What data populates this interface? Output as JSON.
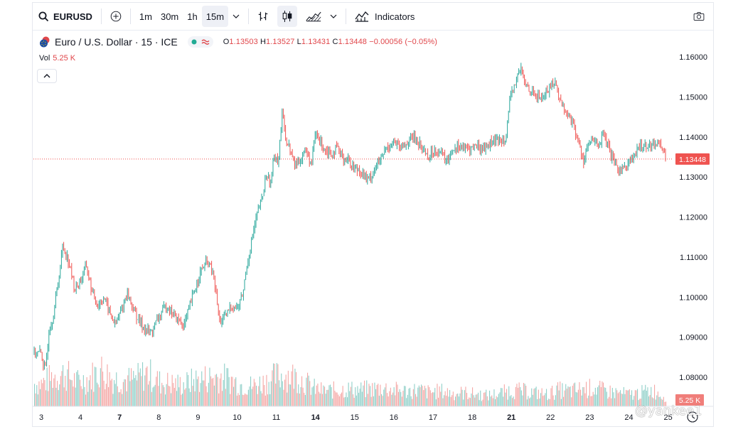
{
  "toolbar": {
    "symbol": "EURUSD",
    "intervals": [
      "1m",
      "30m",
      "1h",
      "15m"
    ],
    "active_interval": "15m",
    "indicators_label": "Indicators",
    "icons": [
      "search-icon",
      "add-symbol-icon",
      "chevron-down-icon",
      "bar-style-icon",
      "candle-style-icon",
      "area-style-icon",
      "chevron-down-icon",
      "indicators-icon",
      "camera-icon"
    ]
  },
  "legend": {
    "title": "Euro / U.S. Dollar · 15 · ICE",
    "open_label": "O",
    "open": "1.13503",
    "high_label": "H",
    "high": "1.13527",
    "low_label": "L",
    "low": "1.13431",
    "close_label": "C",
    "close": "1.13448",
    "change": "−0.00056 (−0.05%)"
  },
  "volume": {
    "label": "Vol",
    "value": "5.25 K"
  },
  "watermark": "@yankee1",
  "colors": {
    "up": "#26a69a",
    "down": "#ef5350",
    "up_vol": "#8fcfc8",
    "down_vol": "#f4a7a5",
    "last": "#ef5350"
  },
  "chart_data": {
    "type": "candlestick",
    "y_axis": {
      "min": 1.07,
      "max": 1.165,
      "ticks": [
        "1.16000",
        "1.15000",
        "1.14000",
        "1.13000",
        "1.12000",
        "1.11000",
        "1.10000",
        "1.09000",
        "1.08000"
      ]
    },
    "x_ticks": [
      "3",
      "4",
      "7",
      "8",
      "9",
      "10",
      "11",
      "14",
      "15",
      "16",
      "17",
      "18",
      "21",
      "22",
      "23",
      "24",
      "25"
    ],
    "x_ticks_bold": [
      "7",
      "14",
      "21"
    ],
    "last_price": "1.13448",
    "last_volume": "5.25 K",
    "price_path": [
      [
        0,
        1.086
      ],
      [
        0.1,
        1.081
      ],
      [
        0.2,
        1.092
      ],
      [
        0.3,
        1.095
      ],
      [
        0.45,
        1.105
      ],
      [
        0.55,
        1.113
      ],
      [
        0.7,
        1.109
      ],
      [
        0.85,
        1.102
      ],
      [
        1.0,
        1.104
      ],
      [
        1.15,
        1.108
      ],
      [
        1.3,
        1.101
      ],
      [
        1.45,
        1.098
      ],
      [
        1.6,
        1.1
      ],
      [
        1.75,
        1.096
      ],
      [
        1.9,
        1.093
      ],
      [
        2.05,
        1.097
      ],
      [
        2.2,
        1.101
      ],
      [
        2.35,
        1.097
      ],
      [
        2.5,
        1.094
      ],
      [
        2.65,
        1.092
      ],
      [
        2.8,
        1.091
      ],
      [
        3.0,
        1.095
      ],
      [
        3.2,
        1.098
      ],
      [
        3.35,
        1.096
      ],
      [
        3.5,
        1.094
      ],
      [
        3.65,
        1.093
      ],
      [
        3.8,
        1.098
      ],
      [
        3.95,
        1.103
      ],
      [
        4.1,
        1.107
      ],
      [
        4.25,
        1.109
      ],
      [
        4.4,
        1.105
      ],
      [
        4.55,
        1.094
      ],
      [
        4.7,
        1.095
      ],
      [
        4.85,
        1.098
      ],
      [
        5.0,
        1.097
      ],
      [
        5.15,
        1.101
      ],
      [
        5.25,
        1.108
      ],
      [
        5.35,
        1.113
      ],
      [
        5.45,
        1.118
      ],
      [
        5.55,
        1.122
      ],
      [
        5.65,
        1.125
      ],
      [
        5.75,
        1.131
      ],
      [
        5.85,
        1.128
      ],
      [
        5.95,
        1.136
      ],
      [
        6.05,
        1.134
      ],
      [
        6.15,
        1.146
      ],
      [
        6.25,
        1.139
      ],
      [
        6.35,
        1.137
      ],
      [
        6.45,
        1.133
      ],
      [
        6.6,
        1.134
      ],
      [
        6.75,
        1.137
      ],
      [
        6.9,
        1.133
      ],
      [
        7.0,
        1.141
      ],
      [
        7.1,
        1.139
      ],
      [
        7.25,
        1.137
      ],
      [
        7.4,
        1.136
      ],
      [
        7.55,
        1.137
      ],
      [
        7.7,
        1.135
      ],
      [
        7.85,
        1.134
      ],
      [
        8.0,
        1.132
      ],
      [
        8.1,
        1.132
      ],
      [
        8.2,
        1.131
      ],
      [
        8.35,
        1.129
      ],
      [
        8.5,
        1.132
      ],
      [
        8.65,
        1.134
      ],
      [
        8.8,
        1.137
      ],
      [
        9.0,
        1.139
      ],
      [
        9.15,
        1.137
      ],
      [
        9.3,
        1.138
      ],
      [
        9.45,
        1.14
      ],
      [
        9.6,
        1.139
      ],
      [
        9.75,
        1.137
      ],
      [
        9.9,
        1.135
      ],
      [
        10.05,
        1.137
      ],
      [
        10.2,
        1.136
      ],
      [
        10.35,
        1.134
      ],
      [
        10.5,
        1.137
      ],
      [
        10.65,
        1.138
      ],
      [
        10.8,
        1.137
      ],
      [
        10.95,
        1.137
      ],
      [
        11.1,
        1.138
      ],
      [
        11.25,
        1.137
      ],
      [
        11.4,
        1.138
      ],
      [
        11.55,
        1.139
      ],
      [
        11.7,
        1.139
      ],
      [
        11.85,
        1.14
      ],
      [
        11.95,
        1.148
      ],
      [
        12.05,
        1.152
      ],
      [
        12.15,
        1.155
      ],
      [
        12.25,
        1.157
      ],
      [
        12.35,
        1.153
      ],
      [
        12.5,
        1.152
      ],
      [
        12.65,
        1.15
      ],
      [
        12.8,
        1.15
      ],
      [
        12.95,
        1.152
      ],
      [
        13.1,
        1.154
      ],
      [
        13.25,
        1.149
      ],
      [
        13.4,
        1.146
      ],
      [
        13.55,
        1.144
      ],
      [
        13.7,
        1.139
      ],
      [
        13.85,
        1.134
      ],
      [
        13.95,
        1.138
      ],
      [
        14.1,
        1.139
      ],
      [
        14.25,
        1.138
      ],
      [
        14.35,
        1.141
      ],
      [
        14.45,
        1.138
      ],
      [
        14.55,
        1.135
      ],
      [
        14.7,
        1.132
      ],
      [
        14.85,
        1.132
      ],
      [
        15.0,
        1.134
      ],
      [
        15.15,
        1.135
      ],
      [
        15.3,
        1.138
      ],
      [
        15.45,
        1.138
      ],
      [
        15.6,
        1.138
      ],
      [
        15.75,
        1.139
      ],
      [
        15.85,
        1.137
      ],
      [
        15.95,
        1.1345
      ]
    ],
    "volume_profile": [
      [
        0,
        0.42
      ],
      [
        0.3,
        0.55
      ],
      [
        0.6,
        0.6
      ],
      [
        0.9,
        0.45
      ],
      [
        1.2,
        0.5
      ],
      [
        1.5,
        0.68
      ],
      [
        1.8,
        0.52
      ],
      [
        2.1,
        0.48
      ],
      [
        2.4,
        0.5
      ],
      [
        2.7,
        0.62
      ],
      [
        3.0,
        0.45
      ],
      [
        3.3,
        0.42
      ],
      [
        3.6,
        0.4
      ],
      [
        3.9,
        0.48
      ],
      [
        4.2,
        0.52
      ],
      [
        4.5,
        0.55
      ],
      [
        4.8,
        0.5
      ],
      [
        5.1,
        0.4
      ],
      [
        5.4,
        0.38
      ],
      [
        5.7,
        0.45
      ],
      [
        6.0,
        0.55
      ],
      [
        6.3,
        0.58
      ],
      [
        6.6,
        0.52
      ],
      [
        6.9,
        0.35
      ],
      [
        7.2,
        0.28
      ],
      [
        7.5,
        0.3
      ],
      [
        7.8,
        0.32
      ],
      [
        8.1,
        0.3
      ],
      [
        8.4,
        0.32
      ],
      [
        8.7,
        0.34
      ],
      [
        9.0,
        0.3
      ],
      [
        9.3,
        0.28
      ],
      [
        9.6,
        0.3
      ],
      [
        9.9,
        0.26
      ],
      [
        10.2,
        0.28
      ],
      [
        10.5,
        0.24
      ],
      [
        10.8,
        0.25
      ],
      [
        11.1,
        0.22
      ],
      [
        11.4,
        0.2
      ],
      [
        11.7,
        0.24
      ],
      [
        12.0,
        0.3
      ],
      [
        12.3,
        0.28
      ],
      [
        12.6,
        0.25
      ],
      [
        12.9,
        0.22
      ],
      [
        13.2,
        0.3
      ],
      [
        13.5,
        0.28
      ],
      [
        13.8,
        0.32
      ],
      [
        14.1,
        0.34
      ],
      [
        14.4,
        0.28
      ],
      [
        14.7,
        0.25
      ],
      [
        15.0,
        0.22
      ],
      [
        15.3,
        0.25
      ],
      [
        15.6,
        0.3
      ],
      [
        15.9,
        0.18
      ]
    ]
  }
}
